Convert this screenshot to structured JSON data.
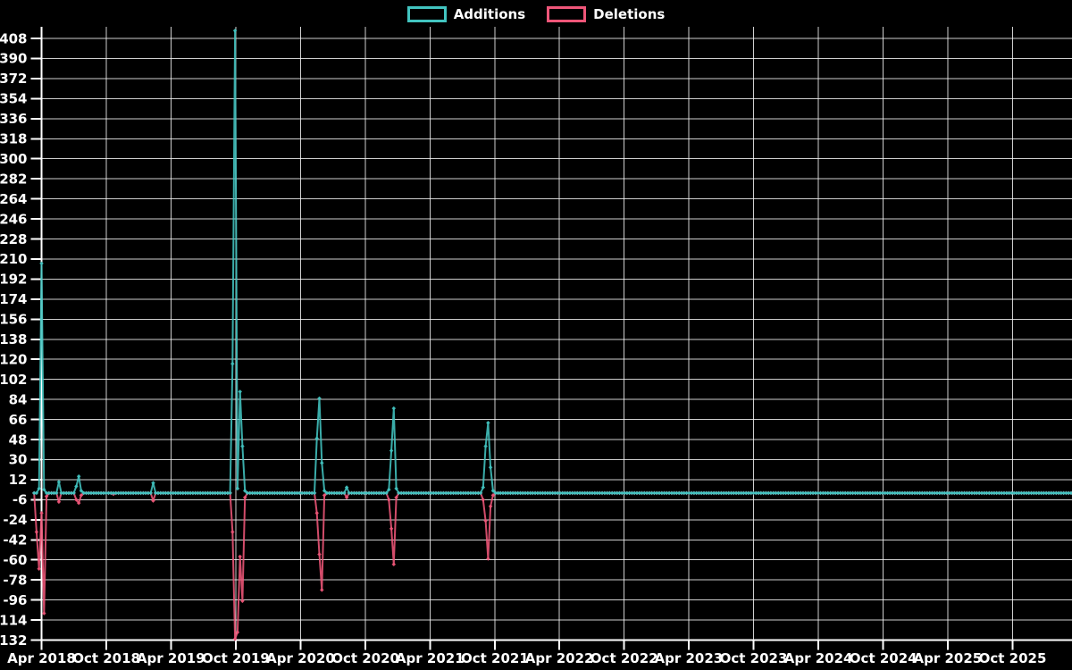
{
  "legend": {
    "additions_label": "Additions",
    "deletions_label": "Deletions"
  },
  "colors": {
    "background": "#000000",
    "additions": "#42c4c0",
    "deletions": "#ef5679",
    "grid": "#f2f2f2",
    "axis": "#ffffff",
    "text": "#ffffff"
  },
  "chart_data": {
    "type": "line",
    "title": "",
    "xlabel": "",
    "ylabel": "",
    "grid": true,
    "legend_position": "top-center",
    "marker": "diamond",
    "x_origin": "2018-04-01",
    "x_tick_labels": [
      "Apr 2018",
      "Oct 2018",
      "Apr 2019",
      "Oct 2019",
      "Apr 2020",
      "Oct 2020",
      "Apr 2021",
      "Oct 2021",
      "Apr 2022",
      "Oct 2022",
      "Apr 2023",
      "Oct 2023",
      "Apr 2024",
      "Oct 2024",
      "Apr 2025",
      "Oct 2025"
    ],
    "y_ticks": [
      -132,
      -114,
      -96,
      -78,
      -60,
      -42,
      -24,
      -6,
      12,
      30,
      48,
      66,
      84,
      102,
      120,
      138,
      156,
      174,
      192,
      210,
      228,
      246,
      264,
      282,
      300,
      318,
      336,
      354,
      372,
      390,
      408
    ],
    "ylim": [
      -132,
      418
    ],
    "series_names": [
      "Additions",
      "Deletions"
    ],
    "zero_fill": {
      "start": "2018-03-11",
      "end": "2026-03-15",
      "interval_days": 7,
      "additions": 0,
      "deletions": 0
    },
    "points": [
      [
        "2018-03-18",
        0,
        -35
      ],
      [
        "2018-03-25",
        4,
        -68
      ],
      [
        "2018-04-01",
        206,
        -18
      ],
      [
        "2018-04-08",
        3,
        -108
      ],
      [
        "2018-04-15",
        0,
        -3
      ],
      [
        "2018-05-20",
        10,
        -8
      ],
      [
        "2018-07-08",
        6,
        -6
      ],
      [
        "2018-07-15",
        15,
        -9
      ],
      [
        "2018-07-22",
        2,
        -2
      ],
      [
        "2018-10-21",
        0,
        -1
      ],
      [
        "2019-02-10",
        9,
        -7
      ],
      [
        "2019-09-22",
        116,
        -35
      ],
      [
        "2019-09-29",
        415,
        -131
      ],
      [
        "2019-10-06",
        4,
        -125
      ],
      [
        "2019-10-13",
        91,
        -57
      ],
      [
        "2019-10-20",
        42,
        -97
      ],
      [
        "2019-10-27",
        2,
        -4
      ],
      [
        "2020-05-17",
        49,
        -18
      ],
      [
        "2020-05-24",
        85,
        -55
      ],
      [
        "2020-05-31",
        27,
        -87
      ],
      [
        "2020-06-07",
        2,
        -2
      ],
      [
        "2020-08-09",
        5,
        -4
      ],
      [
        "2020-12-06",
        3,
        -6
      ],
      [
        "2020-12-13",
        38,
        -32
      ],
      [
        "2020-12-20",
        76,
        -64
      ],
      [
        "2020-12-27",
        4,
        -4
      ],
      [
        "2021-08-29",
        5,
        -6
      ],
      [
        "2021-09-05",
        42,
        -25
      ],
      [
        "2021-09-12",
        63,
        -59
      ],
      [
        "2021-09-19",
        23,
        -12
      ],
      [
        "2021-09-26",
        2,
        -2
      ]
    ]
  }
}
